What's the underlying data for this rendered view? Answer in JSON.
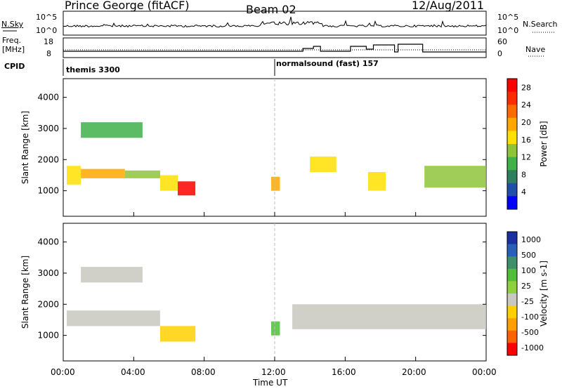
{
  "header": {
    "station": "Prince George (fitACF)",
    "beam": "Beam 02",
    "date": "12/Aug/2011"
  },
  "top_panels": {
    "nsky_label": "N.Sky",
    "nsky_ticks": [
      "10^5",
      "10^0"
    ],
    "nsearch_label": "N.Search",
    "freq_label_line1": "Freq.",
    "freq_label_line2": "[MHz]",
    "freq_ticks": [
      "18",
      "8"
    ],
    "nave_ticks": [
      "60",
      "0"
    ],
    "nave_label": "Nave",
    "cpid_label": "CPID",
    "cpid_segments": [
      "themis 3300",
      "normalsound (fast) 157"
    ]
  },
  "x_axis": {
    "label": "Time UT",
    "ticks": [
      "00:00",
      "04:00",
      "08:00",
      "12:00",
      "16:00",
      "20:00",
      "00:00"
    ]
  },
  "colors": {
    "power": [
      "#0000ff",
      "#1f4fa8",
      "#2f7f5f",
      "#3fb04a",
      "#8fc43a",
      "#ffe000",
      "#ffa800",
      "#ff6a00",
      "#ff2a00",
      "#ff0000"
    ],
    "velocity": [
      "#1a2fa0",
      "#2a5fb8",
      "#3f8f6a",
      "#4fbf3a",
      "#8fd040",
      "#c8c8c0",
      "#ffd000",
      "#ffa000",
      "#ff6000",
      "#ff0000"
    ],
    "ground_scatter": "#c8c8c0"
  },
  "chart_data": [
    {
      "type": "heatmap",
      "title": "",
      "xlabel": "Time UT",
      "ylabel": "Slant Range [km]",
      "xlim": [
        0,
        24
      ],
      "ylim": [
        180,
        4600
      ],
      "y_ticks": [
        1000,
        2000,
        3000,
        4000
      ],
      "colorbar": {
        "label": "Power [dB]",
        "ticks": [
          4,
          8,
          12,
          16,
          20,
          24,
          28
        ],
        "range": [
          0,
          30
        ]
      },
      "bands": [
        {
          "t": [
            0.2,
            1.0
          ],
          "r": [
            1200,
            1800
          ],
          "p": 15
        },
        {
          "t": [
            1.0,
            3.5
          ],
          "r": [
            1400,
            1700
          ],
          "p": 18
        },
        {
          "t": [
            3.5,
            5.5
          ],
          "r": [
            1400,
            1650
          ],
          "p": 14
        },
        {
          "t": [
            5.5,
            6.5
          ],
          "r": [
            1000,
            1500
          ],
          "p": 16
        },
        {
          "t": [
            6.5,
            7.5
          ],
          "r": [
            850,
            1300
          ],
          "p": 27
        },
        {
          "t": [
            1.0,
            4.5
          ],
          "r": [
            2700,
            3200
          ],
          "p": 10
        },
        {
          "t": [
            11.8,
            12.3
          ],
          "r": [
            1000,
            1450
          ],
          "p": 19
        },
        {
          "t": [
            14.0,
            15.5
          ],
          "r": [
            1600,
            2100
          ],
          "p": 16
        },
        {
          "t": [
            17.3,
            18.3
          ],
          "r": [
            1000,
            1600
          ],
          "p": 16
        },
        {
          "t": [
            20.5,
            24.0
          ],
          "r": [
            1100,
            1800
          ],
          "p": 14
        }
      ]
    },
    {
      "type": "heatmap",
      "title": "",
      "xlabel": "Time UT",
      "ylabel": "Slant Range [km]",
      "xlim": [
        0,
        24
      ],
      "ylim": [
        180,
        4600
      ],
      "y_ticks": [
        1000,
        2000,
        3000,
        4000
      ],
      "colorbar": {
        "label": "Velocity [m s-1]",
        "ticks": [
          "1000",
          "500",
          "100",
          "25",
          "-25",
          "-100",
          "-500",
          "-1000"
        ],
        "range": [
          -1000,
          1000
        ]
      },
      "bands": [
        {
          "t": [
            0.2,
            5.5
          ],
          "r": [
            1300,
            1800
          ],
          "v": 0
        },
        {
          "t": [
            1.0,
            4.5
          ],
          "r": [
            2700,
            3200
          ],
          "v": 0
        },
        {
          "t": [
            5.5,
            7.5
          ],
          "r": [
            800,
            1300
          ],
          "v": -400
        },
        {
          "t": [
            11.8,
            12.3
          ],
          "r": [
            1000,
            1450
          ],
          "v": 300
        },
        {
          "t": [
            13.0,
            24.0
          ],
          "r": [
            1200,
            2000
          ],
          "v": 0
        }
      ]
    }
  ]
}
